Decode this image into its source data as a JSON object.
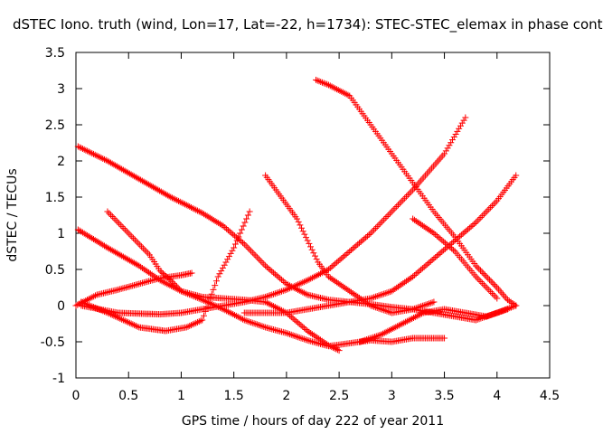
{
  "chart_data": {
    "type": "scatter",
    "title": "dSTEC Iono. truth (wind, Lon=17, Lat=-22, h=1734): STEC-STEC_elemax in phase cont",
    "xlabel": "GPS time / hours of day 222 of year 2011",
    "ylabel": "dSTEC  / TECUs",
    "xlim": [
      0,
      4.5
    ],
    "ylim": [
      -1,
      3.5
    ],
    "xticks": [
      "0",
      "0.5",
      "1",
      "1.5",
      "2",
      "2.5",
      "3",
      "3.5",
      "4",
      "4.5"
    ],
    "yticks": [
      "-1",
      "-0.5",
      "0",
      "0.5",
      "1",
      "1.5",
      "2",
      "2.5",
      "3",
      "3.5"
    ],
    "grid": false,
    "marker": "+",
    "color": "#ff0000",
    "series": [
      {
        "x": [
          0.02,
          0.3,
          0.6,
          0.9,
          1.2,
          1.4,
          1.6,
          1.8,
          2.0,
          2.2,
          2.4,
          2.6,
          2.8,
          3.0,
          3.2,
          3.4,
          3.6,
          3.8,
          4.0,
          4.18
        ],
        "y": [
          2.2,
          2.0,
          1.75,
          1.5,
          1.28,
          1.1,
          0.85,
          0.55,
          0.3,
          0.15,
          0.08,
          0.05,
          0.02,
          -0.02,
          -0.05,
          -0.1,
          -0.15,
          -0.2,
          -0.1,
          0.0
        ]
      },
      {
        "x": [
          0.02,
          0.3,
          0.6,
          0.8,
          1.0,
          1.2,
          1.4,
          1.6,
          1.8,
          2.0,
          2.2,
          2.4,
          2.6,
          2.8,
          3.0,
          3.2,
          3.5
        ],
        "y": [
          1.05,
          0.8,
          0.55,
          0.35,
          0.2,
          0.08,
          -0.05,
          -0.2,
          -0.3,
          -0.38,
          -0.48,
          -0.56,
          -0.52,
          -0.48,
          -0.5,
          -0.45,
          -0.45
        ]
      },
      {
        "x": [
          0.0,
          0.2,
          0.4,
          0.6,
          0.8,
          1.0,
          1.1
        ],
        "y": [
          0.0,
          0.15,
          0.22,
          0.3,
          0.38,
          0.42,
          0.45
        ]
      },
      {
        "x": [
          0.05,
          0.3,
          0.6,
          0.85,
          1.05,
          1.2,
          1.35,
          1.5,
          1.65
        ],
        "y": [
          0.05,
          -0.1,
          -0.3,
          -0.35,
          -0.3,
          -0.2,
          0.4,
          0.8,
          1.3
        ]
      },
      {
        "x": [
          0.3,
          0.5,
          0.7,
          0.8,
          0.9,
          1.0,
          1.2,
          1.4,
          1.6,
          1.8,
          2.0,
          2.2,
          2.4,
          2.5
        ],
        "y": [
          1.3,
          1.0,
          0.7,
          0.48,
          0.35,
          0.2,
          0.12,
          0.1,
          0.08,
          0.05,
          -0.1,
          -0.35,
          -0.55,
          -0.62
        ]
      },
      {
        "x": [
          1.8,
          1.9,
          2.0,
          2.1,
          2.2,
          2.3,
          2.4,
          2.6,
          2.8,
          3.0,
          3.2,
          3.4
        ],
        "y": [
          1.8,
          1.6,
          1.4,
          1.2,
          0.9,
          0.6,
          0.4,
          0.2,
          0.0,
          -0.1,
          -0.05,
          0.05
        ]
      },
      {
        "x": [
          0.05,
          0.4,
          0.8,
          1.0,
          1.2,
          1.4,
          1.6,
          1.8,
          2.0,
          2.2,
          2.4,
          2.6,
          2.8,
          3.0,
          3.2,
          3.5,
          3.7
        ],
        "y": [
          0.0,
          -0.1,
          -0.12,
          -0.1,
          -0.05,
          0.0,
          0.05,
          0.12,
          0.22,
          0.35,
          0.5,
          0.75,
          1.0,
          1.3,
          1.6,
          2.1,
          2.6
        ]
      },
      {
        "x": [
          1.6,
          1.8,
          2.0,
          2.2,
          2.4,
          2.6,
          2.8,
          3.0,
          3.2,
          3.4,
          3.6,
          3.8,
          4.0,
          4.18
        ],
        "y": [
          -0.1,
          -0.1,
          -0.1,
          -0.05,
          0.0,
          0.05,
          0.1,
          0.2,
          0.4,
          0.65,
          0.9,
          1.15,
          1.45,
          1.8
        ]
      },
      {
        "x": [
          2.28,
          2.4,
          2.6,
          2.8,
          3.0,
          3.2,
          3.4,
          3.6,
          3.8,
          3.9,
          4.0,
          4.1,
          4.18
        ],
        "y": [
          3.12,
          3.05,
          2.9,
          2.5,
          2.1,
          1.7,
          1.3,
          0.95,
          0.55,
          0.4,
          0.25,
          0.08,
          0.0
        ]
      },
      {
        "x": [
          3.2,
          3.4,
          3.6,
          3.8,
          4.0
        ],
        "y": [
          1.2,
          1.0,
          0.75,
          0.4,
          0.1
        ]
      },
      {
        "x": [
          2.7,
          2.9,
          3.1,
          3.3,
          3.5,
          3.7,
          3.9,
          4.1
        ],
        "y": [
          -0.5,
          -0.4,
          -0.25,
          -0.1,
          -0.05,
          -0.1,
          -0.15,
          -0.05
        ]
      }
    ]
  }
}
